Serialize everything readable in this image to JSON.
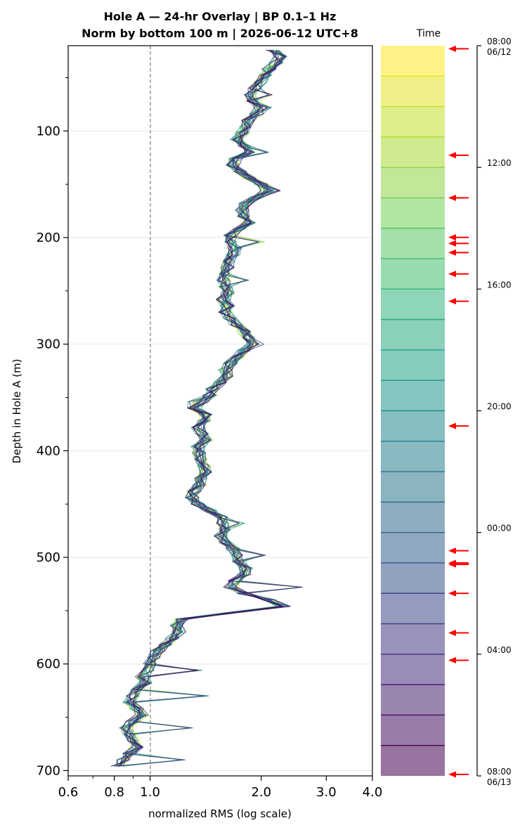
{
  "title": {
    "line1": "Hole A — 24-hr Overlay  |  BP 0.1–1 Hz",
    "line2": "Norm by bottom 100 m  |  2026-06-12 UTC+8"
  },
  "chart_data": {
    "type": "line",
    "xlabel": "normalized RMS  (log scale)",
    "ylabel": "Depth in Hole A (m)",
    "x_scale": "log",
    "xlim": [
      0.6,
      4.0
    ],
    "ylim": [
      705,
      20
    ],
    "x_ticks": [
      0.6,
      0.8,
      1.0,
      2.0,
      3.0,
      4.0
    ],
    "x_tick_labels": [
      "0.6",
      "0.8",
      "1.0",
      "2.0",
      "3.0",
      "4.0"
    ],
    "y_ticks": [
      100,
      200,
      300,
      400,
      500,
      600,
      700
    ],
    "y_tick_labels": [
      "100",
      "200",
      "300",
      "400",
      "500",
      "600",
      "700"
    ],
    "grid": "horizontal, at depth ticks",
    "reference_line": {
      "x": 1.0,
      "style": "dashed",
      "color": "#808080"
    },
    "colormap": "viridis (reversed: yellow at start, purple at end)",
    "series_count": 24,
    "series_time_start": "2026-06-12 08:00",
    "series_time_step_hours": 1,
    "mean_profile": {
      "depth": [
        24,
        30,
        36,
        42,
        48,
        54,
        60,
        66,
        72,
        78,
        84,
        90,
        96,
        102,
        108,
        114,
        120,
        126,
        132,
        138,
        144,
        150,
        156,
        162,
        168,
        174,
        180,
        186,
        192,
        198,
        204,
        210,
        216,
        222,
        228,
        234,
        240,
        246,
        252,
        258,
        264,
        270,
        276,
        282,
        288,
        294,
        300,
        306,
        312,
        318,
        324,
        330,
        336,
        342,
        348,
        354,
        360,
        366,
        372,
        378,
        384,
        390,
        396,
        402,
        408,
        414,
        420,
        426,
        432,
        438,
        444,
        450,
        456,
        462,
        468,
        474,
        480,
        486,
        492,
        498,
        504,
        510,
        516,
        522,
        528,
        534,
        540,
        546,
        552,
        558,
        564,
        570,
        576,
        582,
        588,
        594,
        600,
        606,
        612,
        618,
        624,
        630,
        636,
        642,
        648,
        654,
        660,
        666,
        672,
        678,
        684,
        690,
        696
      ],
      "rms": [
        2.15,
        2.25,
        2.2,
        2.1,
        2.05,
        2.0,
        1.92,
        1.85,
        1.9,
        2.0,
        1.95,
        1.85,
        1.82,
        1.78,
        1.72,
        1.8,
        1.85,
        1.7,
        1.68,
        1.75,
        1.85,
        2.0,
        2.08,
        1.95,
        1.82,
        1.78,
        1.8,
        1.85,
        1.75,
        1.65,
        1.66,
        1.7,
        1.68,
        1.65,
        1.62,
        1.6,
        1.58,
        1.6,
        1.62,
        1.58,
        1.62,
        1.6,
        1.65,
        1.72,
        1.8,
        1.85,
        1.9,
        1.8,
        1.72,
        1.65,
        1.6,
        1.62,
        1.55,
        1.48,
        1.45,
        1.38,
        1.32,
        1.42,
        1.4,
        1.35,
        1.38,
        1.42,
        1.35,
        1.36,
        1.38,
        1.4,
        1.42,
        1.38,
        1.36,
        1.32,
        1.3,
        1.35,
        1.45,
        1.55,
        1.58,
        1.6,
        1.55,
        1.6,
        1.68,
        1.72,
        1.75,
        1.82,
        1.8,
        1.7,
        1.65,
        1.8,
        2.1,
        2.3,
        1.65,
        1.22,
        1.18,
        1.2,
        1.15,
        1.1,
        1.05,
        1.03,
        1.0,
        0.98,
        0.95,
        0.97,
        0.93,
        0.9,
        0.88,
        0.92,
        0.95,
        0.9,
        0.86,
        0.88,
        0.9,
        0.92,
        0.88,
        0.85,
        0.82
      ],
      "anomalies": [
        [
          66,
          2.12
        ],
        [
          78,
          2.12
        ],
        [
          120,
          2.05
        ],
        [
          156,
          2.22
        ],
        [
          204,
          2.0
        ],
        [
          240,
          1.85
        ],
        [
          300,
          2.0
        ],
        [
          354,
          1.28
        ],
        [
          438,
          1.28
        ],
        [
          468,
          1.78
        ],
        [
          498,
          2.02
        ],
        [
          528,
          2.55
        ],
        [
          606,
          1.35
        ],
        [
          630,
          1.42
        ],
        [
          660,
          1.28
        ],
        [
          690,
          1.22
        ]
      ]
    }
  },
  "colorbar": {
    "title": "Time",
    "segments": 24,
    "colormap": "viridis (reversed)",
    "ticks": [
      {
        "label": "08:00",
        "sublabel": "06/12",
        "hour": 0
      },
      {
        "label": "12:00",
        "sublabel": "",
        "hour": 4
      },
      {
        "label": "16:00",
        "sublabel": "",
        "hour": 8
      },
      {
        "label": "20:00",
        "sublabel": "",
        "hour": 12
      },
      {
        "label": "00:00",
        "sublabel": "",
        "hour": 16
      },
      {
        "label": "04:00",
        "sublabel": "",
        "hour": 20
      },
      {
        "label": "08:00",
        "sublabel": "06/13",
        "hour": 24
      }
    ],
    "event_markers_hours": [
      0.1,
      3.6,
      5.0,
      6.3,
      6.5,
      6.8,
      7.5,
      8.4,
      12.5,
      16.6,
      17.0,
      17.05,
      18.0,
      19.3,
      20.2,
      23.95
    ],
    "event_marker_color": "#ff0000"
  }
}
